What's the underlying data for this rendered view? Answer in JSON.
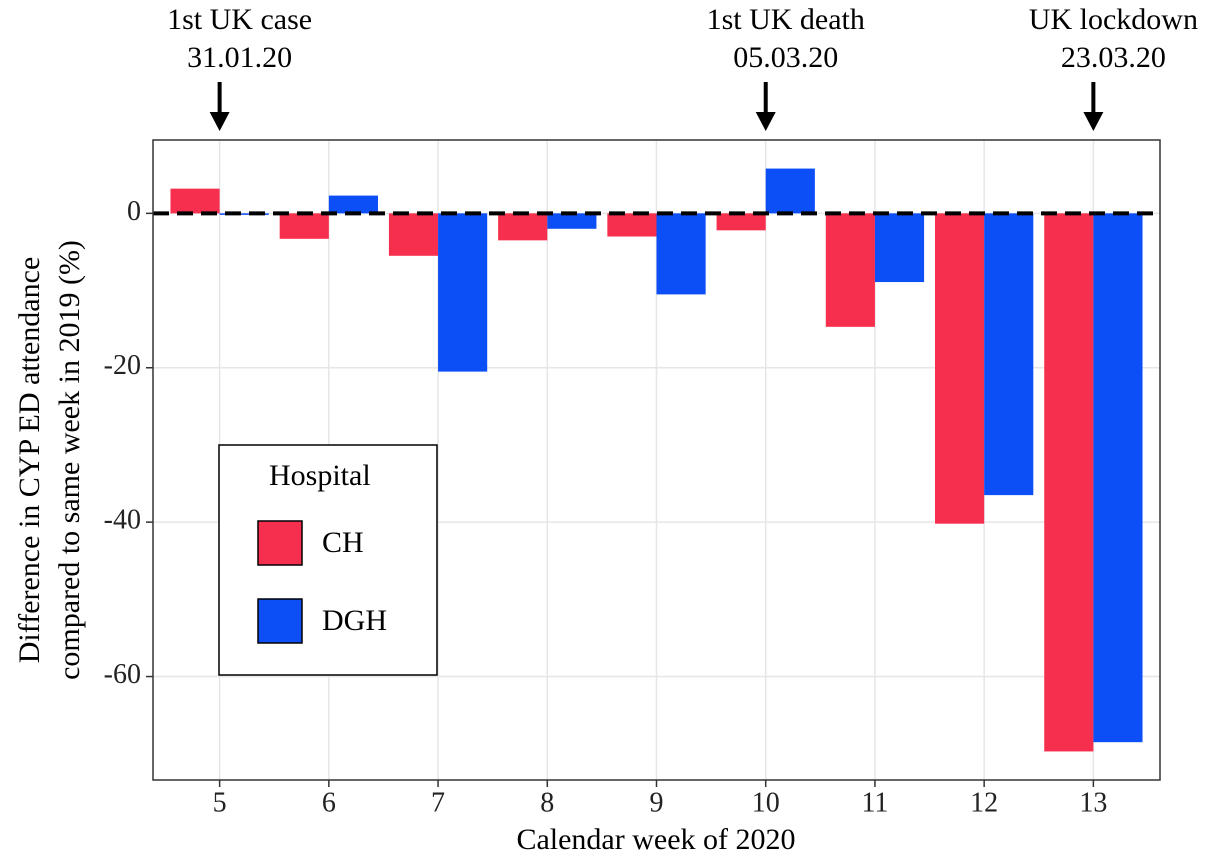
{
  "chart_data": {
    "type": "bar",
    "x": [
      5,
      6,
      7,
      8,
      9,
      10,
      11,
      12,
      13
    ],
    "series": [
      {
        "name": "CH",
        "color": "#f72f4f",
        "values": [
          3.2,
          -3.3,
          -5.5,
          -3.5,
          -3.0,
          -2.2,
          -14.7,
          -40.2,
          -69.7
        ]
      },
      {
        "name": "DGH",
        "color": "#0d4ff7",
        "values": [
          -0.2,
          2.3,
          -20.5,
          -2.0,
          -10.5,
          5.8,
          -8.9,
          -36.5,
          -68.5
        ]
      }
    ],
    "xlim": [
      4.39,
      13.61
    ],
    "xticks": [
      5,
      6,
      7,
      8,
      9,
      10,
      11,
      12,
      13
    ],
    "ylim": [
      -73.4,
      9.5
    ],
    "yticks": [
      0,
      -20,
      -40,
      -60
    ],
    "grid": true,
    "hline": 0,
    "xlabel": "Calendar week of 2020",
    "ylabel": [
      "Difference in CYP ED attendance",
      "compared to same week in 2019 (%)"
    ],
    "legend": {
      "title": "Hospital",
      "position": "bottom-left"
    },
    "annotations": [
      {
        "x": 5,
        "lines": [
          "1st UK case",
          "31.01.20"
        ]
      },
      {
        "x": 10,
        "lines": [
          "1st UK death",
          "05.03.20"
        ]
      },
      {
        "x": 13,
        "lines": [
          "UK lockdown",
          "23.03.20"
        ]
      }
    ]
  }
}
